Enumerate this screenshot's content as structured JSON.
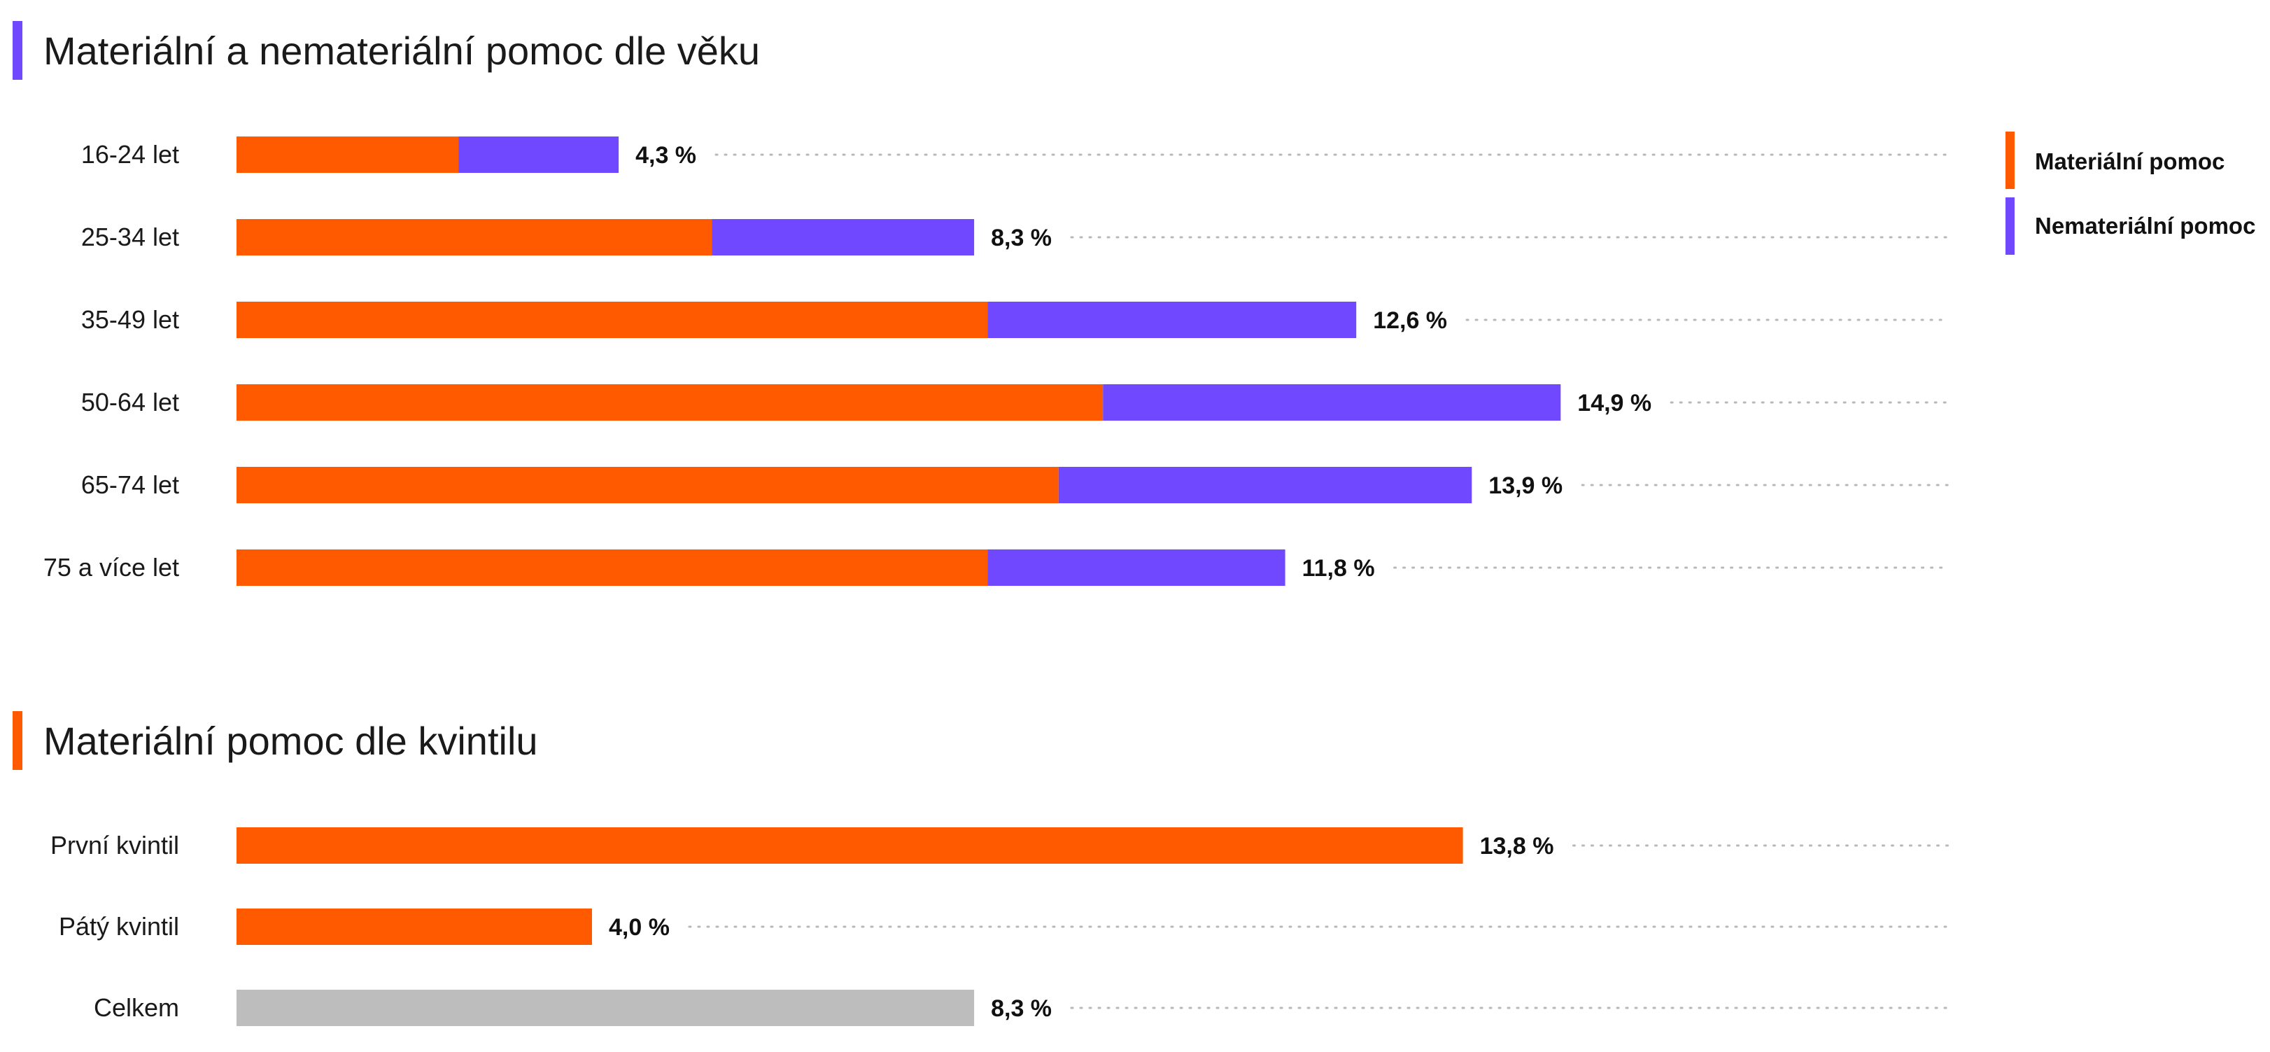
{
  "colors": {
    "material": "#ff5a00",
    "nonmaterial": "#6f48ff",
    "total": "#bdbdbd",
    "dots": "#b8b8b8"
  },
  "chart_data": [
    {
      "type": "bar",
      "orientation": "horizontal",
      "stacked": true,
      "title": "Materiální a nemateriální pomoc dle věku",
      "categories": [
        "16-24 let",
        "25-34 let",
        "35-49 let",
        "50-64 let",
        "65-74 let",
        "75 a více let"
      ],
      "series": [
        {
          "name": "Materiální pomoc",
          "values": [
            2.5,
            5.35,
            8.45,
            9.75,
            9.25,
            8.45
          ]
        },
        {
          "name": "Nemateriální pomoc",
          "values": [
            1.8,
            2.95,
            4.15,
            5.15,
            4.65,
            3.35
          ]
        }
      ],
      "value_labels": [
        "4,3 %",
        "8,3 %",
        "12,6 %",
        "14,9 %",
        "13,9 %",
        "11,8 %"
      ],
      "xlim": [
        0,
        19.6
      ],
      "legend": "right",
      "grid": false
    },
    {
      "type": "bar",
      "orientation": "horizontal",
      "title": "Materiální pomoc dle kvintilu",
      "categories": [
        "První kvintil",
        "Pátý kvintil",
        "Celkem"
      ],
      "values": [
        13.8,
        4.0,
        8.3
      ],
      "value_labels": [
        "13,8 %",
        "4,0 %",
        "8,3 %"
      ],
      "xlim": [
        0,
        19.6
      ],
      "grid": false
    }
  ]
}
